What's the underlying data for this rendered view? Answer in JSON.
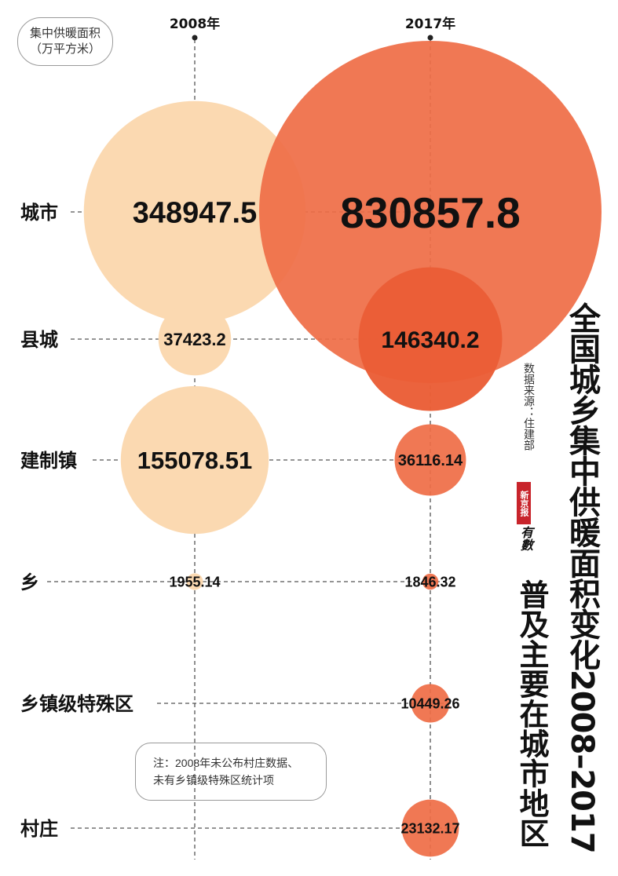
{
  "unit_label": {
    "line1": "集中供暖面积",
    "line2": "（万平方米）"
  },
  "note": {
    "line1": "注：2008年未公布村庄数据、",
    "line2": "未有乡镇级特殊区统计项"
  },
  "title": "全国城乡集中供暖面积变化2008–2017",
  "subtitle": "普及主要在城市地区",
  "source": "数据来源：住建部",
  "logo": {
    "brand": "新京报",
    "script": "有數"
  },
  "colors": {
    "series_2008": "#fbd9b1",
    "series_2017": "#ef6e47",
    "overlap_2017_county": "#e8522a"
  },
  "chart_data": {
    "type": "bubble",
    "title": "全国城乡集中供暖面积变化2008–2017",
    "subtitle": "普及主要在城市地区",
    "ylabel": "集中供暖面积（万平方米）",
    "x": [
      "2008年",
      "2017年"
    ],
    "categories": [
      "城市",
      "县城",
      "建制镇",
      "乡",
      "乡镇级特殊区",
      "村庄"
    ],
    "series": [
      {
        "name": "2008年",
        "values": [
          348947.5,
          37423.2,
          155078.51,
          1955.14,
          null,
          null
        ],
        "labels": [
          "348947.5",
          "37423.2",
          "155078.51",
          "1955.14",
          "",
          ""
        ]
      },
      {
        "name": "2017年",
        "values": [
          830857.8,
          146340.2,
          36116.14,
          1846.32,
          10449.26,
          23132.17
        ],
        "labels": [
          "830857.8",
          "146340.2",
          "36116.14",
          "1846.32",
          "10449.26",
          "23132.17"
        ]
      }
    ],
    "grid": false,
    "legend": "none"
  }
}
